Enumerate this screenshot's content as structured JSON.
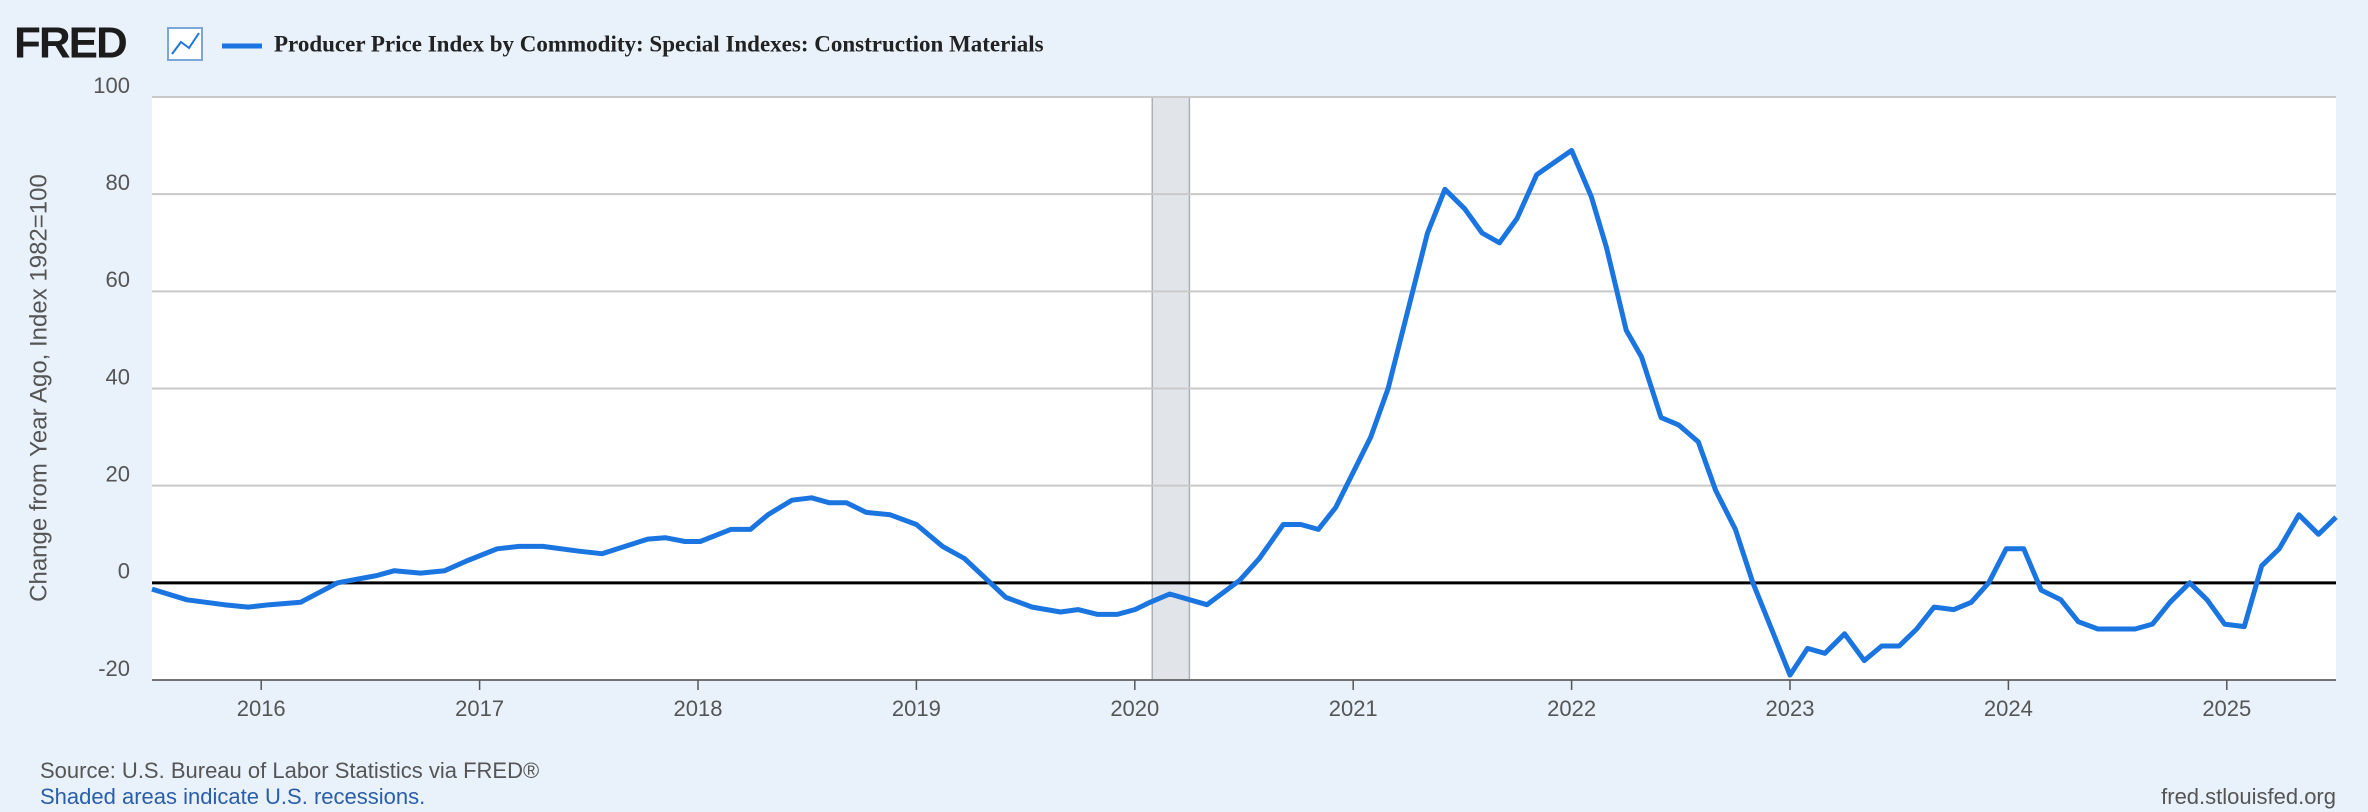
{
  "chart_data": {
    "type": "line",
    "logo": "FRED",
    "y_label": "Change from Year Ago, Index 1982=100",
    "source": "Source: U.S. Bureau of Labor Statistics via FRED®",
    "note": "Shaded areas indicate U.S. recessions.",
    "url": "fred.stlouisfed.org",
    "grid": true,
    "recessions": [
      [
        2020.08,
        2020.25
      ]
    ],
    "xlim": [
      2015.5,
      2025.5
    ],
    "xticks": [
      2016,
      2017,
      2018,
      2019,
      2020,
      2021,
      2022,
      2023,
      2024,
      2025
    ],
    "ylim": [
      -20,
      100
    ],
    "yticks": [
      -20,
      0,
      20,
      40,
      60,
      80,
      100
    ],
    "x": [
      2015.5,
      2015.66,
      2015.83,
      2015.94,
      2016.04,
      2016.18,
      2016.35,
      2016.53,
      2016.61,
      2016.73,
      2016.84,
      2016.94,
      2017.08,
      2017.18,
      2017.29,
      2017.46,
      2017.56,
      2017.77,
      2017.85,
      2017.94,
      2018.01,
      2018.15,
      2018.24,
      2018.32,
      2018.43,
      2018.52,
      2018.6,
      2018.68,
      2018.77,
      2018.88,
      2019.0,
      2019.12,
      2019.22,
      2019.41,
      2019.53,
      2019.66,
      2019.74,
      2019.83,
      2019.92,
      2020.0,
      2020.07,
      2020.16,
      2020.33,
      2020.48,
      2020.57,
      2020.68,
      2020.76,
      2020.84,
      2020.92,
      2021.08,
      2021.16,
      2021.34,
      2021.42,
      2021.51,
      2021.59,
      2021.67,
      2021.75,
      2021.84,
      2021.92,
      2022.0,
      2022.09,
      2022.16,
      2022.25,
      2022.32,
      2022.41,
      2022.49,
      2022.58,
      2022.66,
      2022.75,
      2022.83,
      2022.92,
      2023.0,
      2023.08,
      2023.16,
      2023.25,
      2023.34,
      2023.42,
      2023.5,
      2023.58,
      2023.66,
      2023.75,
      2023.83,
      2023.91,
      2023.99,
      2024.07,
      2024.15,
      2024.24,
      2024.32,
      2024.41,
      2024.49,
      2024.58,
      2024.66,
      2024.74,
      2024.83,
      2024.91,
      2024.99,
      2025.08,
      2025.16,
      2025.24,
      2025.33,
      2025.42,
      2025.5
    ],
    "series": [
      {
        "name": "Producer Price Index by Commodity: Special Indexes: Construction Materials",
        "color": "#1a75e0",
        "values": [
          -1.3,
          -3.5,
          -4.5,
          -5,
          -4.5,
          -4,
          0,
          1.5,
          2.5,
          2,
          2.5,
          4.5,
          7,
          7.5,
          7.5,
          6.5,
          6,
          9,
          9.3,
          8.5,
          8.5,
          11,
          11,
          14,
          17,
          17.5,
          16.5,
          16.5,
          14.5,
          14,
          12,
          7.5,
          5,
          -3,
          -5,
          -6,
          -5.5,
          -6.5,
          -6.5,
          -5.5,
          -4,
          -2.3,
          -4.5,
          0.5,
          5,
          12,
          12,
          11,
          15.5,
          30,
          40,
          72,
          81,
          77,
          72,
          70,
          75,
          84,
          86.5,
          89,
          79.5,
          69,
          52,
          46.5,
          34,
          32.5,
          29,
          19,
          11,
          0,
          -10,
          -19,
          -13.5,
          -14.5,
          -10.5,
          -16,
          -13,
          -13,
          -9.5,
          -5,
          -5.5,
          -4,
          0,
          7,
          7,
          -1.5,
          -3.5,
          -8,
          -9.5,
          -9.5,
          -9.5,
          -8.5,
          -4,
          0,
          -3.5,
          -8.5,
          -9,
          3.5,
          7,
          14,
          10,
          13.5
        ]
      }
    ]
  }
}
